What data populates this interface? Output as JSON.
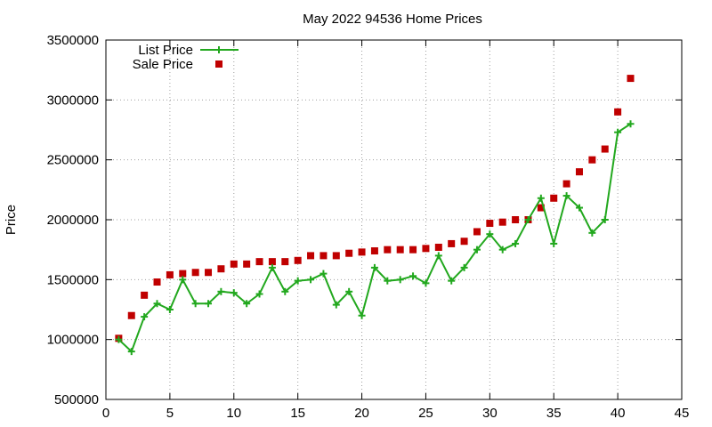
{
  "chart_data": {
    "type": "line",
    "title": "May 2022 94536 Home Prices",
    "xlabel": "",
    "ylabel": "Price",
    "xlim": [
      0,
      45
    ],
    "ylim": [
      500000,
      3500000
    ],
    "xticks": [
      0,
      5,
      10,
      15,
      20,
      25,
      30,
      35,
      40,
      45
    ],
    "yticks": [
      500000,
      1000000,
      1500000,
      2000000,
      2500000,
      3000000,
      3500000
    ],
    "xtick_labels": [
      "0",
      "5",
      "10",
      "15",
      "20",
      "25",
      "30",
      "35",
      "40",
      "45"
    ],
    "ytick_labels": [
      "500000",
      "1000000",
      "1500000",
      "2000000",
      "2500000",
      "3000000",
      "3500000"
    ],
    "grid": true,
    "legend_position": "top-left",
    "series": [
      {
        "name": "List Price",
        "style": "linespoints",
        "marker": "plus",
        "color": "#22a81e",
        "x": [
          1,
          2,
          3,
          4,
          5,
          6,
          7,
          8,
          9,
          10,
          11,
          12,
          13,
          14,
          15,
          16,
          17,
          18,
          19,
          20,
          21,
          22,
          23,
          24,
          25,
          26,
          27,
          28,
          29,
          30,
          31,
          32,
          33,
          34,
          35,
          36,
          37,
          38,
          39,
          40,
          41
        ],
        "y": [
          1000000,
          900000,
          1190000,
          1300000,
          1250000,
          1500000,
          1300000,
          1300000,
          1400000,
          1390000,
          1300000,
          1380000,
          1600000,
          1400000,
          1490000,
          1500000,
          1550000,
          1290000,
          1400000,
          1200000,
          1600000,
          1490000,
          1500000,
          1530000,
          1470000,
          1700000,
          1490000,
          1600000,
          1750000,
          1880000,
          1750000,
          1800000,
          2000000,
          2180000,
          1800000,
          2200000,
          2100000,
          1890000,
          2000000,
          2730000,
          2800000
        ]
      },
      {
        "name": "Sale Price",
        "style": "points",
        "marker": "square",
        "color": "#c00000",
        "x": [
          1,
          2,
          3,
          4,
          5,
          6,
          7,
          8,
          9,
          10,
          11,
          12,
          13,
          14,
          15,
          16,
          17,
          18,
          19,
          20,
          21,
          22,
          23,
          24,
          25,
          26,
          27,
          28,
          29,
          30,
          31,
          32,
          33,
          34,
          35,
          36,
          37,
          38,
          39,
          40,
          41
        ],
        "y": [
          1010000,
          1200000,
          1370000,
          1480000,
          1540000,
          1550000,
          1560000,
          1560000,
          1590000,
          1630000,
          1630000,
          1650000,
          1650000,
          1650000,
          1660000,
          1700000,
          1700000,
          1700000,
          1720000,
          1730000,
          1740000,
          1750000,
          1750000,
          1750000,
          1760000,
          1770000,
          1800000,
          1820000,
          1900000,
          1970000,
          1980000,
          2000000,
          2000000,
          2100000,
          2180000,
          2300000,
          2400000,
          2500000,
          2590000,
          2900000,
          3180000
        ]
      }
    ]
  }
}
